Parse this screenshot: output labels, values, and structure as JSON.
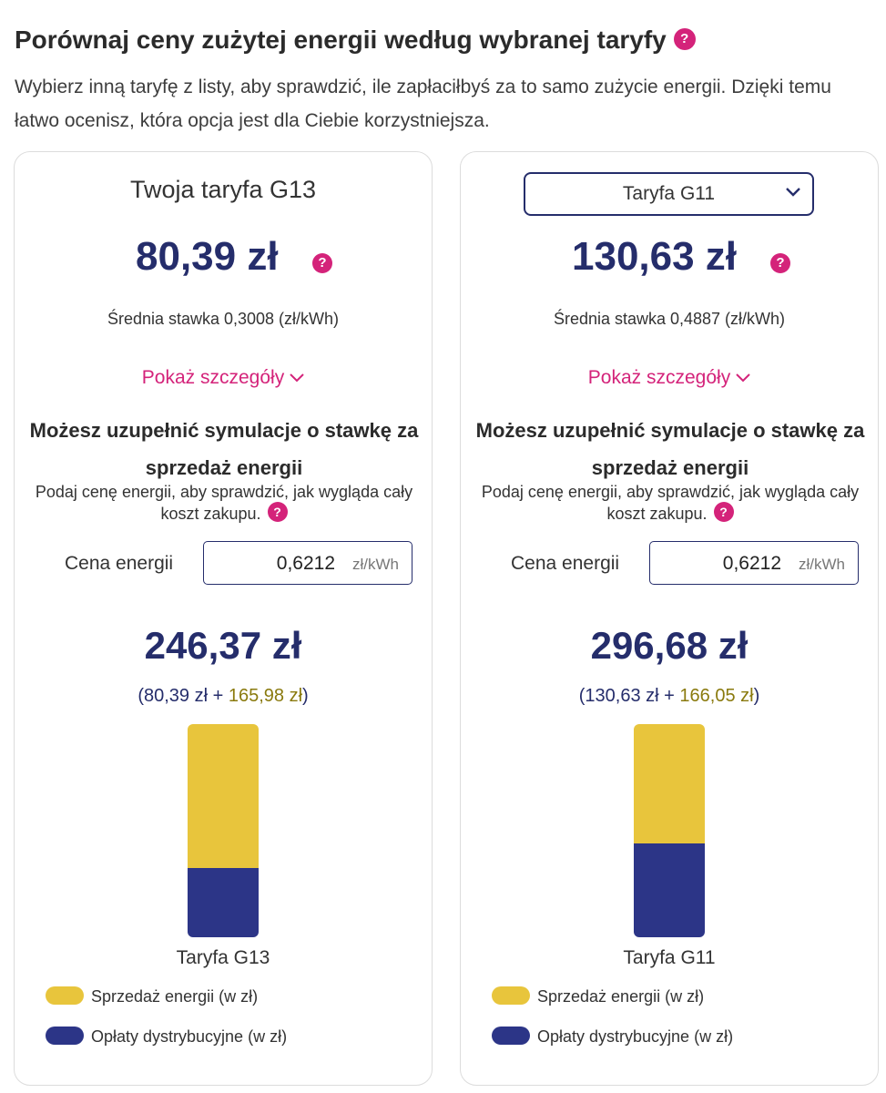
{
  "header": {
    "title": "Porównaj ceny zużytej energii według wybranej taryfy",
    "description": "Wybierz inną taryfę z listy, aby sprawdzić, ile zapłaciłbyś za to samo zużycie energii. Dzięki temu łatwo ocenisz, która opcja jest dla Ciebie korzystniejsza."
  },
  "left": {
    "title": "Twoja taryfa G13",
    "price": "80,39 zł",
    "avg_rate": "Średnia stawka 0,3008 (zł/kWh)",
    "details_link": "Pokaż szczegóły",
    "sim_title": "Możesz uzupełnić symulacje o stawkę za sprzedaż energii",
    "sim_desc": "Podaj cenę energii, aby sprawdzić, jak wygląda cały koszt zakupu.",
    "energy_label": "Cena energii",
    "energy_value": "0,6212",
    "energy_unit": "zł/kWh",
    "total": "246,37 zł",
    "breakdown_open": "(",
    "breakdown_dist": "80,39 zł",
    "breakdown_plus": " + ",
    "breakdown_sale": "165,98 zł",
    "breakdown_close": ")",
    "bar_label": "Taryfa G13",
    "bar": {
      "sale_value": 165.98,
      "dist_value": 80.39
    },
    "legend_sale": "Sprzedaż energii (w zł)",
    "legend_dist": "Opłaty dystrybucyjne (w zł)"
  },
  "right": {
    "select_value": "Taryfa G11",
    "price": "130,63 zł",
    "avg_rate": "Średnia stawka 0,4887 (zł/kWh)",
    "details_link": "Pokaż szczegóły",
    "sim_title": "Możesz uzupełnić symulacje o stawkę za sprzedaż energii",
    "sim_desc": "Podaj cenę energii, aby sprawdzić, jak wygląda cały koszt zakupu.",
    "energy_label": "Cena energii",
    "energy_value": "0,6212",
    "energy_unit": "zł/kWh",
    "total": "296,68 zł",
    "breakdown_open": "(",
    "breakdown_dist": "130,63 zł",
    "breakdown_plus": " + ",
    "breakdown_sale": "166,05 zł",
    "breakdown_close": ")",
    "bar_label": "Taryfa G11",
    "bar": {
      "sale_value": 166.05,
      "dist_value": 130.63
    },
    "legend_sale": "Sprzedaż energii (w zł)",
    "legend_dist": "Opłaty dystrybucyjne (w zł)"
  },
  "icons": {
    "help": "help-icon",
    "chevron": "chevron-down-icon"
  },
  "colors": {
    "brand_navy": "#252d6b",
    "accent_pink": "#d4237a",
    "sale_yellow": "#e8c53c",
    "dist_blue": "#2c3587"
  }
}
